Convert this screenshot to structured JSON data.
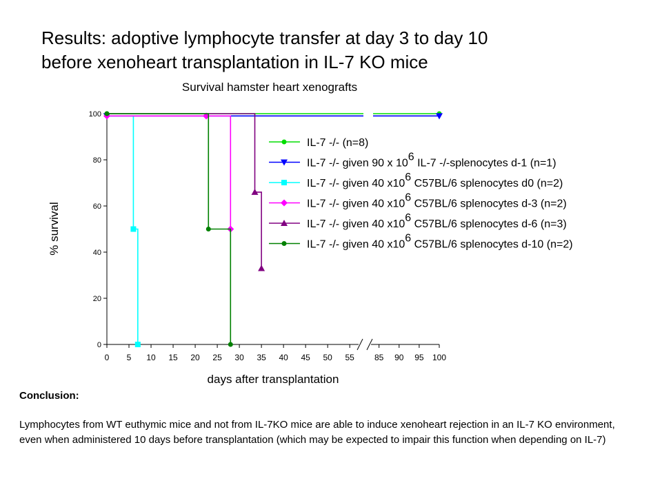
{
  "slide": {
    "title_line1": "Results: adoptive lymphocyte transfer at day 3 to day 10",
    "title_line2": "before xenoheart transplantation in IL-7 KO mice",
    "conclusion_heading": "Conclusion:",
    "conclusion_text": "Lymphocytes from WT euthymic mice and not from IL-7KO mice are able to induce xenoheart rejection in an IL-7 KO environment, even when administered 10 days before transplantation (which may be expected to impair this function when depending on IL-7)"
  },
  "chart_data": {
    "type": "line",
    "step": true,
    "title": "Survival hamster heart xenografts",
    "xlabel": "days after transplantation",
    "ylabel": "% survival",
    "xlim": [
      0,
      100
    ],
    "ylim": [
      0,
      100
    ],
    "x_axis_break": [
      57,
      83
    ],
    "x_ticks": [
      0,
      5,
      10,
      15,
      20,
      25,
      30,
      35,
      40,
      45,
      50,
      55,
      85,
      90,
      95,
      100
    ],
    "y_ticks": [
      0,
      20,
      40,
      60,
      80,
      100
    ],
    "grid": false,
    "legend_position": "right",
    "series": [
      {
        "name": "IL-7 -/- (n=8)",
        "name_parts": [
          "IL-7 -/- (n=8)"
        ],
        "color": "#00dd00",
        "marker": "circle",
        "points": [
          [
            0,
            100
          ],
          [
            100,
            100
          ]
        ],
        "steps": [
          [
            0,
            100
          ],
          [
            100,
            100
          ]
        ]
      },
      {
        "name": "IL-7 -/- given 90 x 10^6 IL-7 -/-splenocytes d-1 (n=1)",
        "name_parts": [
          "IL-7 -/- given 90 x 10",
          "6",
          " IL-7 -/-splenocytes d-1 (n=1)"
        ],
        "color": "#0000ff",
        "marker": "triangle-down",
        "points": [
          [
            0,
            99
          ],
          [
            100,
            99
          ]
        ],
        "steps": [
          [
            0,
            99
          ],
          [
            100,
            99
          ]
        ]
      },
      {
        "name": "IL-7 -/- given 40 x10^6 C57BL/6 splenocytes d0 (n=2)",
        "name_parts": [
          "IL-7 -/- given 40 x10",
          "6",
          " C57BL/6 splenocytes d0 (n=2)"
        ],
        "color": "#00ffff",
        "marker": "square",
        "points": [
          [
            6,
            50
          ],
          [
            7,
            0
          ]
        ],
        "steps": [
          [
            0,
            99
          ],
          [
            6,
            99
          ],
          [
            6,
            50
          ],
          [
            7,
            50
          ],
          [
            7,
            0
          ]
        ]
      },
      {
        "name": "IL-7 -/- given 40 x10^6 C57BL/6 splenocytes d-3 (n=2)",
        "name_parts": [
          "IL-7 -/- given 40 x10",
          "6",
          " C57BL/6 splenocytes d-3 (n=2)"
        ],
        "color": "#ff00ff",
        "marker": "diamond",
        "points": [
          [
            0,
            99
          ],
          [
            22.5,
            99
          ],
          [
            28,
            50
          ]
        ],
        "steps": [
          [
            0,
            99
          ],
          [
            28,
            99
          ],
          [
            28,
            50
          ]
        ]
      },
      {
        "name": "IL-7 -/- given 40 x10^6 C57BL/6 splenocytes d-6 (n=3)",
        "name_parts": [
          "IL-7 -/- given 40 x10",
          "6",
          " C57BL/6 splenocytes d-6 (n=3)"
        ],
        "color": "#800080",
        "marker": "triangle-up",
        "points": [
          [
            33.5,
            66
          ],
          [
            35,
            33
          ]
        ],
        "steps": [
          [
            0,
            100
          ],
          [
            33.5,
            100
          ],
          [
            33.5,
            66
          ],
          [
            35,
            66
          ],
          [
            35,
            33
          ]
        ]
      },
      {
        "name": "IL-7 -/- given 40 x10^6 C57BL/6 splenocytes d-10 (n=2)",
        "name_parts": [
          "IL-7 -/- given 40 x10",
          "6",
          " C57BL/6 splenocytes d-10 (n=2)"
        ],
        "color": "#008000",
        "marker": "circle",
        "points": [
          [
            0,
            100
          ],
          [
            23,
            50
          ],
          [
            28,
            0
          ]
        ],
        "steps": [
          [
            0,
            100
          ],
          [
            23,
            100
          ],
          [
            23,
            50
          ],
          [
            28,
            50
          ],
          [
            28,
            0
          ]
        ]
      }
    ]
  }
}
